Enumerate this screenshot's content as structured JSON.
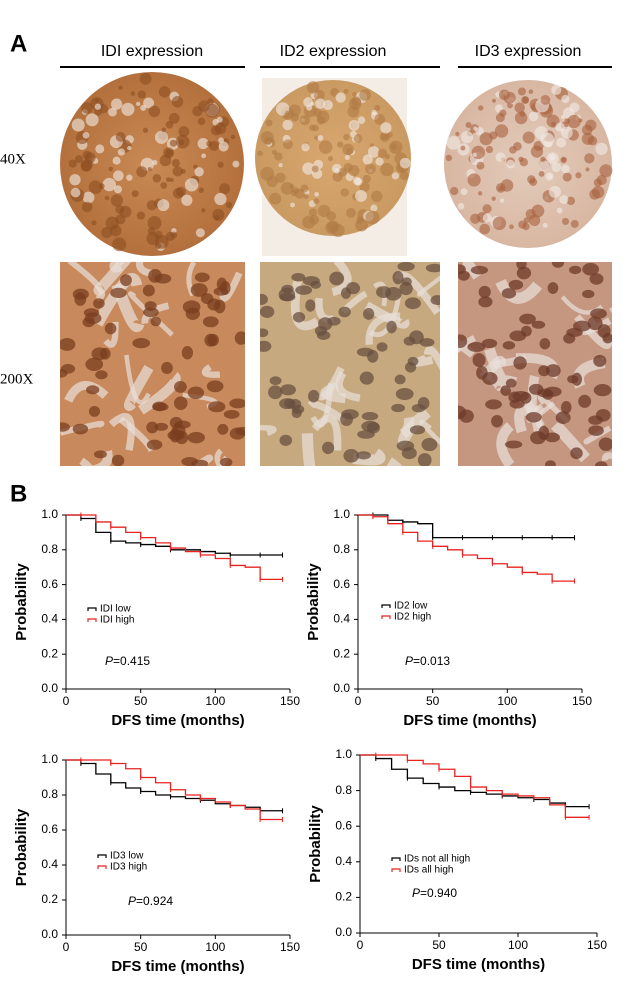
{
  "panel_a": {
    "label": "A",
    "columns": [
      "IDI expression",
      "ID2 expression",
      "ID3 expression"
    ],
    "rows": [
      "40X",
      "200X"
    ]
  },
  "panel_b_label": "B",
  "chart_data": [
    {
      "type": "step",
      "x_label": "DFS time (months)",
      "y_label": "Probability",
      "x": [
        0,
        10,
        20,
        30,
        40,
        50,
        60,
        70,
        80,
        90,
        100,
        110,
        120,
        130,
        140,
        145
      ],
      "series": [
        {
          "name": "IDI low",
          "color": "#000000",
          "values": [
            1.0,
            0.98,
            0.9,
            0.85,
            0.84,
            0.83,
            0.82,
            0.8,
            0.8,
            0.79,
            0.78,
            0.77,
            0.77,
            0.77,
            0.77,
            0.77
          ]
        },
        {
          "name": "IDI high",
          "color": "#e8231f",
          "values": [
            1.0,
            1.0,
            0.96,
            0.93,
            0.9,
            0.87,
            0.84,
            0.81,
            0.79,
            0.77,
            0.75,
            0.71,
            0.7,
            0.63,
            0.63,
            0.63
          ]
        }
      ],
      "annotation": {
        "prefix": "P",
        "text": "=0.415"
      },
      "xlim": [
        0,
        150
      ],
      "xticks": [
        0,
        50,
        100,
        150
      ],
      "ylim": [
        0,
        1
      ],
      "yticks": [
        {
          "value": 0,
          "label": "0.0"
        },
        0.2,
        0.4,
        0.6,
        0.8,
        {
          "value": 1,
          "label": "1.0"
        }
      ]
    },
    {
      "type": "step",
      "x_label": "DFS time (months)",
      "y_label": "Probability",
      "x": [
        0,
        10,
        20,
        30,
        40,
        50,
        60,
        70,
        80,
        90,
        100,
        110,
        120,
        130,
        140,
        145
      ],
      "series": [
        {
          "name": "ID2 low",
          "color": "#000000",
          "values": [
            1.0,
            1.0,
            0.97,
            0.96,
            0.95,
            0.87,
            0.87,
            0.87,
            0.87,
            0.87,
            0.87,
            0.87,
            0.87,
            0.87,
            0.87,
            0.87
          ]
        },
        {
          "name": "ID2 high",
          "color": "#e8231f",
          "values": [
            1.0,
            0.99,
            0.95,
            0.9,
            0.85,
            0.82,
            0.8,
            0.77,
            0.75,
            0.72,
            0.7,
            0.67,
            0.66,
            0.62,
            0.62,
            0.62
          ]
        }
      ],
      "annotation": {
        "prefix": "P",
        "text": "=0.013"
      },
      "xlim": [
        0,
        150
      ],
      "xticks": [
        0,
        50,
        100,
        150
      ],
      "ylim": [
        0,
        1
      ],
      "yticks": [
        {
          "value": 0,
          "label": "0.0"
        },
        0.2,
        0.4,
        0.6,
        0.8,
        {
          "value": 1,
          "label": "1.0"
        }
      ]
    },
    {
      "type": "step",
      "x_label": "DFS time (months)",
      "y_label": "Probability",
      "x": [
        0,
        10,
        20,
        30,
        40,
        50,
        60,
        70,
        80,
        90,
        100,
        110,
        120,
        130,
        140,
        145
      ],
      "series": [
        {
          "name": "ID3 low",
          "color": "#000000",
          "values": [
            1.0,
            0.98,
            0.92,
            0.87,
            0.84,
            0.82,
            0.8,
            0.79,
            0.78,
            0.77,
            0.75,
            0.74,
            0.73,
            0.71,
            0.71,
            0.71
          ]
        },
        {
          "name": "ID3 high",
          "color": "#e8231f",
          "values": [
            1.0,
            1.0,
            1.0,
            0.98,
            0.95,
            0.9,
            0.87,
            0.83,
            0.8,
            0.78,
            0.76,
            0.74,
            0.72,
            0.66,
            0.66,
            0.66
          ]
        }
      ],
      "annotation": {
        "prefix": "P",
        "text": "=0.924"
      },
      "xlim": [
        0,
        150
      ],
      "xticks": [
        0,
        50,
        100,
        150
      ],
      "ylim": [
        0,
        1
      ],
      "yticks": [
        {
          "value": 0,
          "label": "0.0"
        },
        0.2,
        0.4,
        0.6,
        0.8,
        {
          "value": 1,
          "label": "1.0"
        }
      ]
    },
    {
      "type": "step",
      "x_label": "DFS time (months)",
      "y_label": "Probability",
      "x": [
        0,
        10,
        20,
        30,
        40,
        50,
        60,
        70,
        80,
        90,
        100,
        110,
        120,
        130,
        140,
        145
      ],
      "series": [
        {
          "name": "IDs not all high",
          "color": "#000000",
          "values": [
            1.0,
            0.98,
            0.92,
            0.87,
            0.84,
            0.82,
            0.8,
            0.79,
            0.78,
            0.77,
            0.76,
            0.75,
            0.73,
            0.71,
            0.71,
            0.71
          ]
        },
        {
          "name": "IDs all high",
          "color": "#e8231f",
          "values": [
            1.0,
            1.0,
            1.0,
            0.97,
            0.95,
            0.92,
            0.88,
            0.82,
            0.8,
            0.78,
            0.77,
            0.76,
            0.72,
            0.65,
            0.65,
            0.65
          ]
        }
      ],
      "annotation": {
        "prefix": "P",
        "text": "=0.940"
      },
      "xlim": [
        0,
        150
      ],
      "xticks": [
        0,
        50,
        100,
        150
      ],
      "ylim": [
        0,
        1
      ],
      "yticks": [
        {
          "value": 0,
          "label": "0.0"
        },
        0.2,
        0.4,
        0.6,
        0.8,
        {
          "value": 1,
          "label": "1.0"
        }
      ]
    }
  ]
}
